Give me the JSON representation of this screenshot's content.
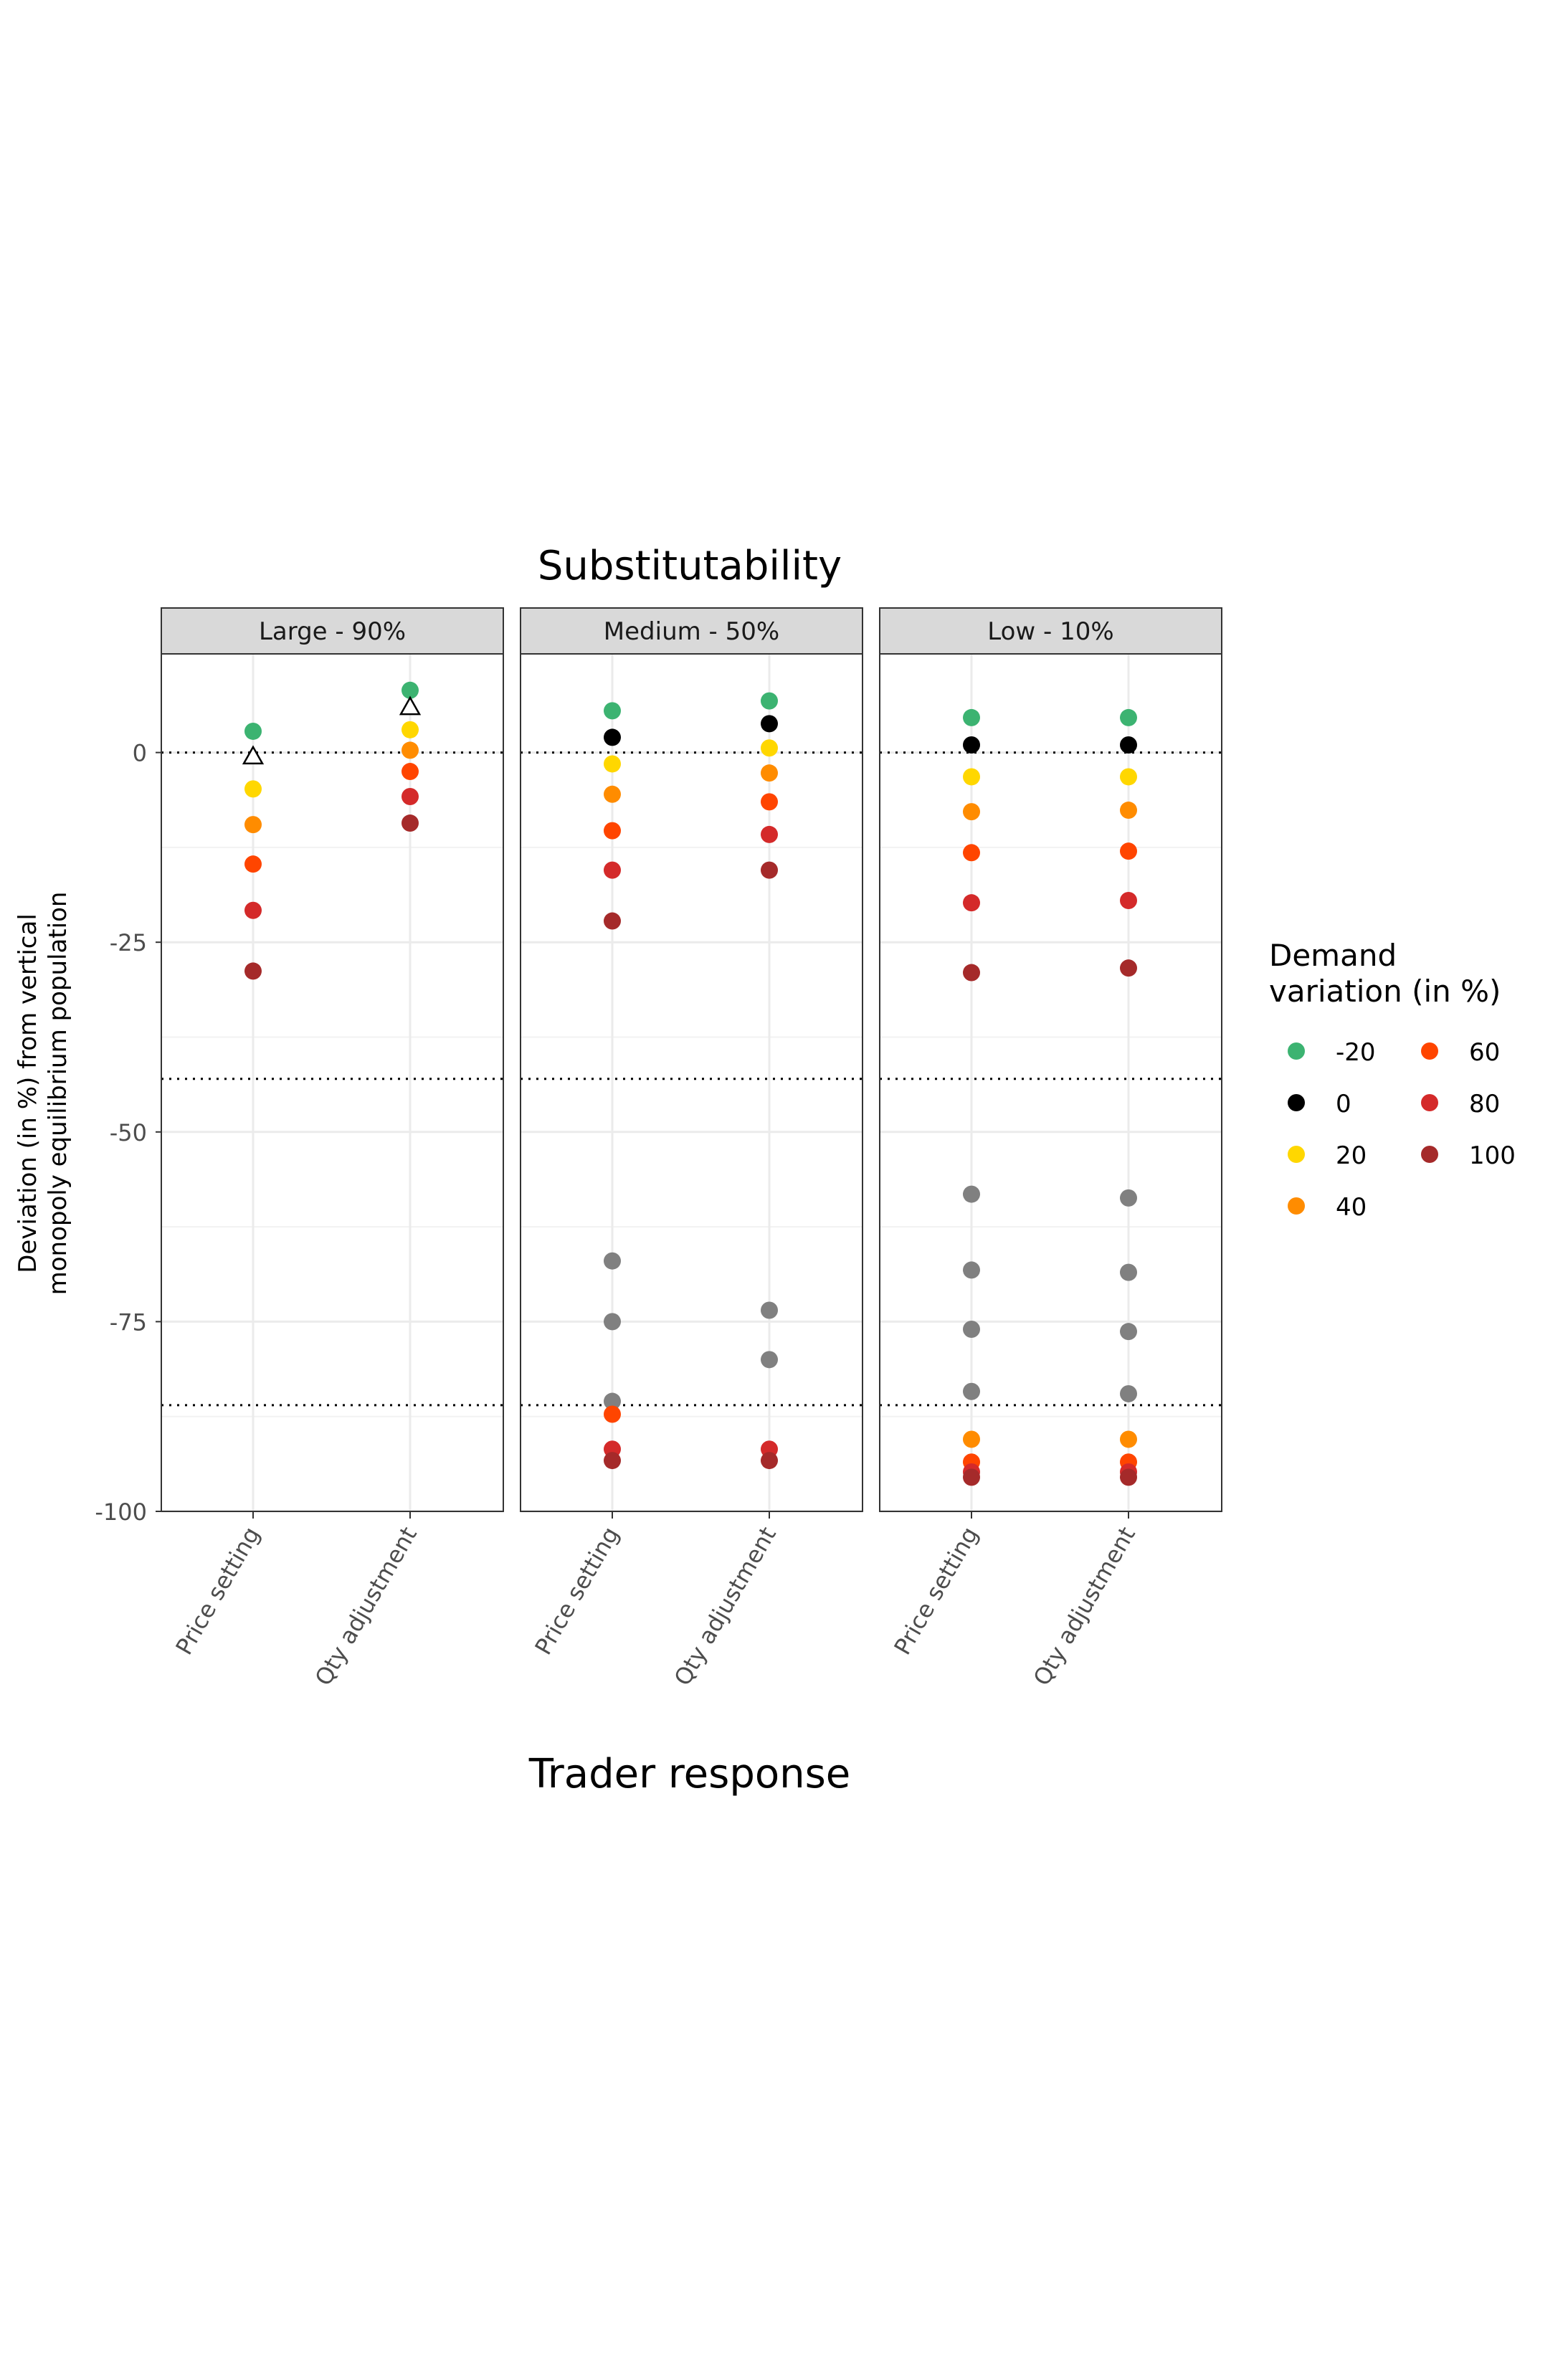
{
  "chart_data": {
    "type": "scatter",
    "facet_title": "Substitutability",
    "xlabel": "Trader response",
    "ylabel_lines": [
      "Deviation (in %) from vertical",
      "monopoly equilibrium population"
    ],
    "ylim": [
      -100,
      13
    ],
    "y_ticks": [
      0,
      -25,
      -50,
      -75,
      -100
    ],
    "y_tick_labels": [
      "0",
      "-25",
      "-50",
      "-75",
      "-100"
    ],
    "y_minor_ticks": [
      -12.5,
      -37.5,
      -62.5,
      -87.5
    ],
    "reference_lines": [
      0,
      -43,
      -86
    ],
    "categories": [
      "Price setting",
      "Qty adjustment"
    ],
    "legend": {
      "title_lines": [
        "Demand",
        "variation (in %)"
      ],
      "placement": "right",
      "items": [
        {
          "label": "-20",
          "color": "#3cb371"
        },
        {
          "label": "0",
          "color": "#000000"
        },
        {
          "label": "20",
          "color": "#ffd700"
        },
        {
          "label": "40",
          "color": "#ff8c00"
        },
        {
          "label": "60",
          "color": "#ff4500"
        },
        {
          "label": "80",
          "color": "#d42a2a"
        },
        {
          "label": "100",
          "color": "#a52a2a"
        }
      ]
    },
    "other_color": "#808080",
    "panels": [
      {
        "title": "Large - 90%",
        "series": [
          {
            "name": "-20",
            "values": [
              2.8,
              8.2
            ]
          },
          {
            "name": "0",
            "values": [
              null,
              null
            ]
          },
          {
            "name": "20",
            "values": [
              -4.8,
              3.0
            ]
          },
          {
            "name": "40",
            "values": [
              -9.5,
              0.3
            ]
          },
          {
            "name": "60",
            "values": [
              -14.7,
              -2.5
            ]
          },
          {
            "name": "80",
            "values": [
              -20.8,
              -5.8
            ]
          },
          {
            "name": "100",
            "values": [
              -28.8,
              -9.3
            ]
          }
        ],
        "triangles": [
          -0.5,
          6.0
        ],
        "other": [
          [],
          []
        ]
      },
      {
        "title": "Medium - 50%",
        "series": [
          {
            "name": "-20",
            "values": [
              5.5,
              6.8
            ]
          },
          {
            "name": "0",
            "values": [
              2.0,
              3.8
            ]
          },
          {
            "name": "20",
            "values": [
              -1.5,
              0.6
            ]
          },
          {
            "name": "40",
            "values": [
              -5.5,
              -2.7
            ]
          },
          {
            "name": "60",
            "values": [
              -10.3,
              -6.5
            ]
          },
          {
            "name": "80",
            "values": [
              -15.5,
              -10.8
            ]
          },
          {
            "name": "100",
            "values": [
              -22.2,
              -15.5
            ]
          }
        ],
        "triangles": [],
        "other": [
          [
            -67.0,
            -75.0,
            -85.5
          ],
          [
            -73.5,
            -80.0
          ]
        ],
        "tail": [
          [
            {
              "name": "60",
              "value": -87.2
            },
            {
              "name": "80",
              "value": -91.8
            },
            {
              "name": "100",
              "value": -93.3
            }
          ],
          [
            {
              "name": "80",
              "value": -91.8
            },
            {
              "name": "100",
              "value": -93.3
            }
          ]
        ]
      },
      {
        "title": "Low - 10%",
        "series": [
          {
            "name": "-20",
            "values": [
              4.6,
              4.6
            ]
          },
          {
            "name": "0",
            "values": [
              1.0,
              1.0
            ]
          },
          {
            "name": "20",
            "values": [
              -3.2,
              -3.2
            ]
          },
          {
            "name": "40",
            "values": [
              -7.8,
              -7.6
            ]
          },
          {
            "name": "60",
            "values": [
              -13.2,
              -13.0
            ]
          },
          {
            "name": "80",
            "values": [
              -19.8,
              -19.5
            ]
          },
          {
            "name": "100",
            "values": [
              -29.0,
              -28.4
            ]
          }
        ],
        "triangles": [],
        "other": [
          [
            -58.2,
            -68.2,
            -76.0,
            -84.2
          ],
          [
            -58.7,
            -68.5,
            -76.3,
            -84.5
          ]
        ],
        "tail": [
          [
            {
              "name": "40",
              "value": -90.5
            },
            {
              "name": "60",
              "value": -93.5
            },
            {
              "name": "80",
              "value": -94.8
            },
            {
              "name": "100",
              "value": -95.5
            }
          ],
          [
            {
              "name": "40",
              "value": -90.5
            },
            {
              "name": "60",
              "value": -93.5
            },
            {
              "name": "80",
              "value": -94.8
            },
            {
              "name": "100",
              "value": -95.5
            }
          ]
        ]
      }
    ]
  }
}
